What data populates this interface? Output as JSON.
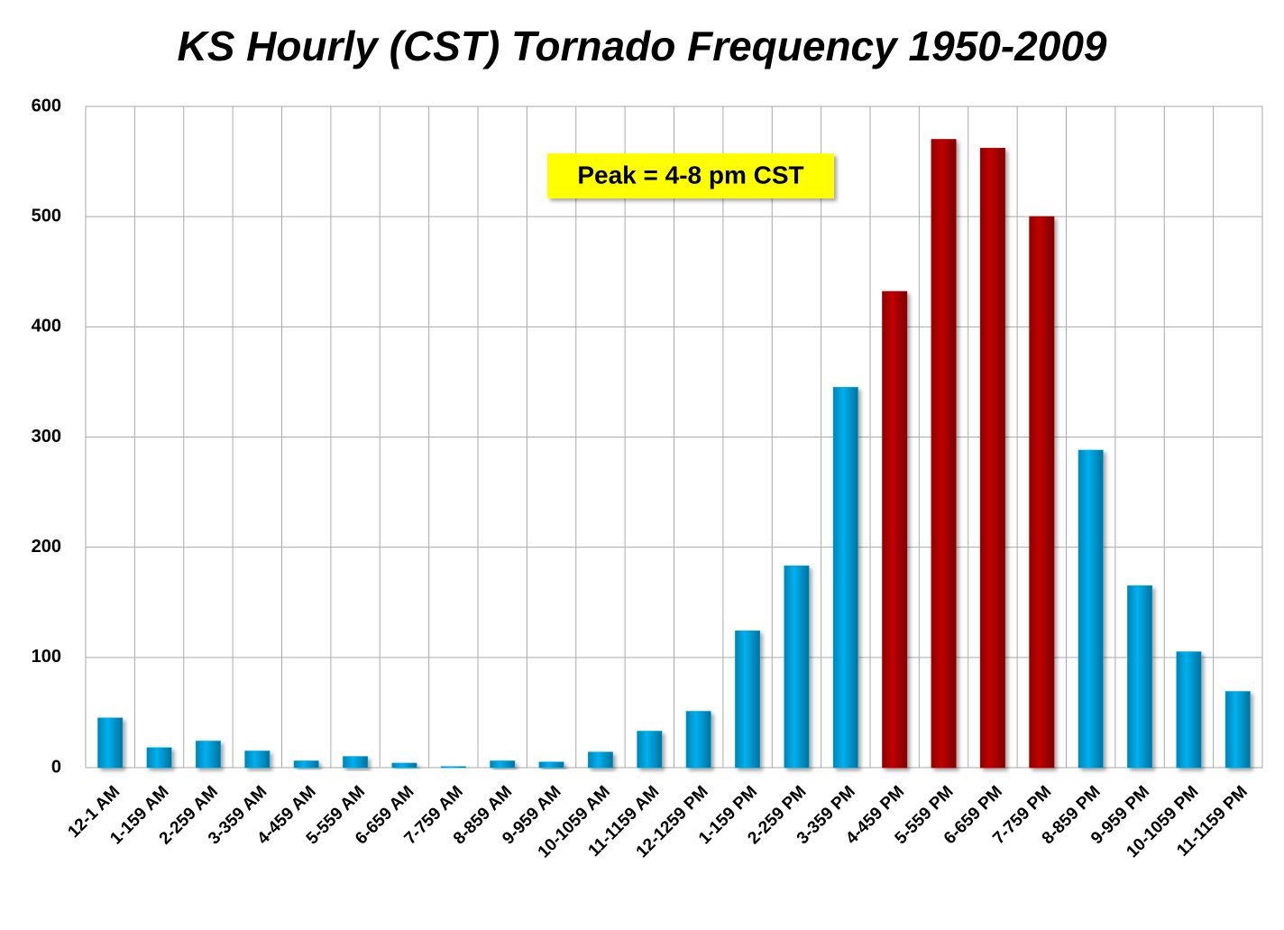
{
  "chart_data": {
    "type": "bar",
    "title": "KS Hourly (CST) Tornado Frequency 1950-2009",
    "categories": [
      "12-1 AM",
      "1-159 AM",
      "2-259 AM",
      "3-359 AM",
      "4-459 AM",
      "5-559 AM",
      "6-659 AM",
      "7-759 AM",
      "8-859 AM",
      "9-959 AM",
      "10-1059 AM",
      "11-1159 AM",
      "12-1259 PM",
      "1-159 PM",
      "2-259 PM",
      "3-359 PM",
      "4-459 PM",
      "5-559 PM",
      "6-659 PM",
      "7-759 PM",
      "8-859 PM",
      "9-959 PM",
      "10-1059 PM",
      "11-1159 PM"
    ],
    "values": [
      45,
      18,
      24,
      15,
      6,
      10,
      4,
      1,
      6,
      5,
      14,
      33,
      51,
      124,
      183,
      345,
      432,
      570,
      562,
      500,
      288,
      165,
      105,
      69
    ],
    "colors": [
      "#00b0f0",
      "#00b0f0",
      "#00b0f0",
      "#00b0f0",
      "#00b0f0",
      "#00b0f0",
      "#00b0f0",
      "#00b0f0",
      "#00b0f0",
      "#00b0f0",
      "#00b0f0",
      "#00b0f0",
      "#00b0f0",
      "#00b0f0",
      "#00b0f0",
      "#00b0f0",
      "#c00000",
      "#c00000",
      "#c00000",
      "#c00000",
      "#00b0f0",
      "#00b0f0",
      "#00b0f0",
      "#00b0f0"
    ],
    "ylim": [
      0,
      600
    ],
    "yticks": [
      0,
      100,
      200,
      300,
      400,
      500,
      600
    ],
    "grid": true,
    "annotation": "Peak = 4-8 pm CST"
  }
}
